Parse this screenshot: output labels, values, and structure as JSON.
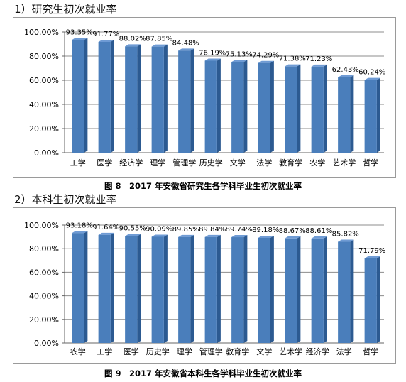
{
  "colors": {
    "bar": "#4a7ebb",
    "bar_dark": "#2c5a91",
    "grid": "#8c8c8c"
  },
  "chart_data": [
    {
      "type": "bar",
      "heading": "1）研究生初次就业率",
      "caption": "图 8　2017 年安徽省研究生各学科毕业生初次就业率",
      "categories": [
        "工学",
        "医学",
        "经济学",
        "理学",
        "管理学",
        "历史学",
        "文学",
        "法学",
        "教育学",
        "农学",
        "艺术学",
        "哲学"
      ],
      "values": [
        93.35,
        91.77,
        88.02,
        87.85,
        84.48,
        76.19,
        75.13,
        74.29,
        71.38,
        71.23,
        62.43,
        60.24
      ],
      "data_labels": [
        "93.35%",
        "91.77%",
        "88.02%",
        "87.85%",
        "84.48%",
        "76.19%",
        "75.13%",
        "74.29%",
        "71.38%",
        "71.23%",
        "62.43%",
        "60.24%"
      ],
      "ylim": [
        0,
        100
      ],
      "yticks": [
        "0.00%",
        "20.00%",
        "40.00%",
        "60.00%",
        "80.00%",
        "100.00%"
      ],
      "grid": true
    },
    {
      "type": "bar",
      "heading": "2）本科生初次就业率",
      "caption": "图 9　2017 年安徽省本科生各学科毕业生初次就业率",
      "categories": [
        "农学",
        "工学",
        "医学",
        "历史学",
        "理学",
        "管理学",
        "教育学",
        "文学",
        "艺术学",
        "经济学",
        "法学",
        "哲学"
      ],
      "values": [
        93.18,
        91.64,
        90.55,
        90.09,
        89.85,
        89.84,
        89.74,
        89.18,
        88.67,
        88.61,
        85.82,
        71.79
      ],
      "data_labels": [
        "93.18%",
        "91.64%",
        "90.55%",
        "90.09%",
        "89.85%",
        "89.84%",
        "89.74%",
        "89.18%",
        "88.67%",
        "88.61%",
        "85.82%",
        "71.79%"
      ],
      "ylim": [
        0,
        100
      ],
      "yticks": [
        "0.00%",
        "20.00%",
        "40.00%",
        "60.00%",
        "80.00%",
        "100.00%"
      ],
      "grid": true
    }
  ]
}
